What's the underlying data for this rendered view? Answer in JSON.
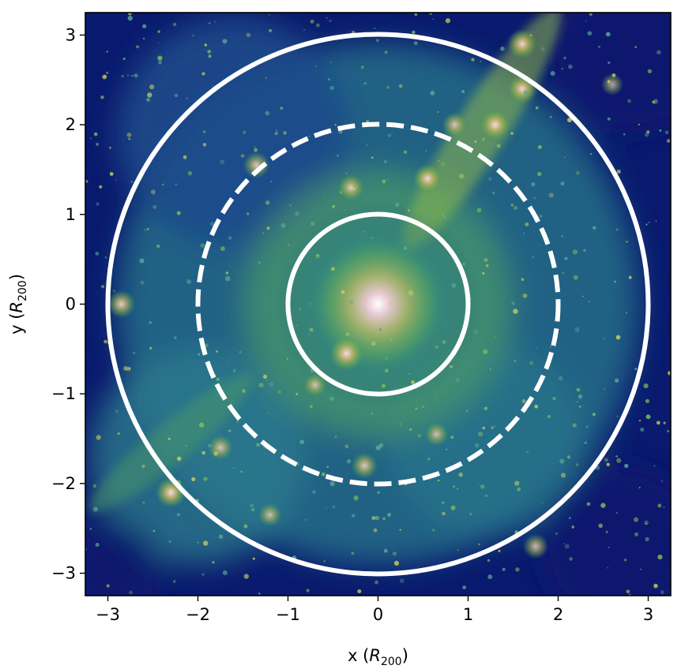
{
  "chart_data": {
    "type": "heatmap",
    "title": "",
    "xlabel": {
      "prefix": "x (",
      "var": "R",
      "sub": "200",
      "suffix": ")"
    },
    "ylabel": {
      "prefix": "y (",
      "var": "R",
      "sub": "200",
      "suffix": ")"
    },
    "xlim": [
      -3.25,
      3.25
    ],
    "ylim": [
      -3.25,
      3.25
    ],
    "xticks": [
      -3,
      -2,
      -1,
      0,
      1,
      2,
      3
    ],
    "yticks": [
      -3,
      -2,
      -1,
      0,
      1,
      2,
      3
    ],
    "xtick_labels": [
      "−3",
      "−2",
      "−1",
      "0",
      "1",
      "2",
      "3"
    ],
    "ytick_labels": [
      "−3",
      "−2",
      "−1",
      "0",
      "1",
      "2",
      "3"
    ],
    "grid": false,
    "colormap": [
      "#0a1a6e",
      "#1d4a8a",
      "#2a7a8c",
      "#4a9a6a",
      "#8fb84a",
      "#d8b090",
      "#f4e8f0"
    ],
    "circles": [
      {
        "r": 1,
        "style": "solid",
        "color": "#ffffff"
      },
      {
        "r": 2,
        "style": "dashed",
        "color": "#ffffff"
      },
      {
        "r": 3,
        "style": "solid",
        "color": "#ffffff"
      }
    ],
    "bright_sources": [
      {
        "x": 0.0,
        "y": 0.0,
        "intensity": 1.0
      },
      {
        "x": -0.35,
        "y": -0.55,
        "intensity": 0.75
      },
      {
        "x": 0.55,
        "y": 1.4,
        "intensity": 0.55
      },
      {
        "x": 1.3,
        "y": 2.0,
        "intensity": 0.6
      },
      {
        "x": 1.6,
        "y": 2.4,
        "intensity": 0.55
      },
      {
        "x": 1.6,
        "y": 2.9,
        "intensity": 0.55
      },
      {
        "x": -2.3,
        "y": -2.1,
        "intensity": 0.6
      },
      {
        "x": -2.85,
        "y": 0.0,
        "intensity": 0.5
      },
      {
        "x": -0.3,
        "y": 1.3,
        "intensity": 0.45
      },
      {
        "x": -1.35,
        "y": 1.55,
        "intensity": 0.45
      },
      {
        "x": -0.15,
        "y": -1.8,
        "intensity": 0.45
      },
      {
        "x": -1.75,
        "y": -1.6,
        "intensity": 0.4
      },
      {
        "x": 1.75,
        "y": -2.7,
        "intensity": 0.4
      },
      {
        "x": 0.85,
        "y": 2.0,
        "intensity": 0.4
      },
      {
        "x": -0.7,
        "y": -0.9,
        "intensity": 0.35
      },
      {
        "x": 0.65,
        "y": -1.45,
        "intensity": 0.35
      },
      {
        "x": -1.2,
        "y": -2.35,
        "intensity": 0.35
      },
      {
        "x": 2.6,
        "y": 2.45,
        "intensity": 0.3
      }
    ]
  }
}
